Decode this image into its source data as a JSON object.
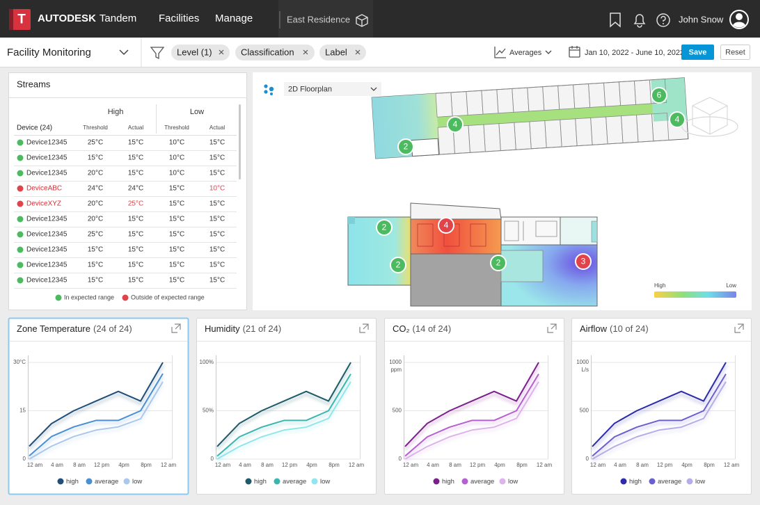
{
  "header": {
    "logo_letter": "T",
    "brand": "AUTODESK",
    "product": "Tandem",
    "nav": [
      "Facilities",
      "Manage"
    ],
    "facility": "East Residence",
    "user": "John Snow"
  },
  "toolbar": {
    "view": "Facility Monitoring",
    "filters": [
      "Level (1)",
      "Classification",
      "Label"
    ],
    "aggregate": "Averages",
    "date_range": "Jan 10, 2022 - June 10, 2022",
    "save": "Save",
    "reset": "Reset"
  },
  "streams": {
    "title": "Streams",
    "group_high": "High",
    "group_low": "Low",
    "device_header": "Device (24)",
    "threshold": "Threshold",
    "actual": "Actual",
    "rows": [
      {
        "device": "Device12345",
        "status": "expected",
        "high_threshold": "25°C",
        "high_actual": "15°C",
        "low_threshold": "10°C",
        "low_actual": "15°C"
      },
      {
        "device": "Device12345",
        "status": "expected",
        "high_threshold": "15°C",
        "high_actual": "15°C",
        "low_threshold": "10°C",
        "low_actual": "15°C"
      },
      {
        "device": "Device12345",
        "status": "expected",
        "high_threshold": "20°C",
        "high_actual": "15°C",
        "low_threshold": "10°C",
        "low_actual": "15°C"
      },
      {
        "device": "DeviceABC",
        "status": "outside",
        "high_threshold": "24°C",
        "high_actual": "24°C",
        "low_threshold": "15°C",
        "low_actual": "10°C",
        "alert": "low_actual"
      },
      {
        "device": "DeviceXYZ",
        "status": "outside",
        "high_threshold": "20°C",
        "high_actual": "25°C",
        "low_threshold": "15°C",
        "low_actual": "15°C",
        "alert": "high_actual"
      },
      {
        "device": "Device12345",
        "status": "expected",
        "high_threshold": "20°C",
        "high_actual": "15°C",
        "low_threshold": "15°C",
        "low_actual": "15°C"
      },
      {
        "device": "Device12345",
        "status": "expected",
        "high_threshold": "25°C",
        "high_actual": "15°C",
        "low_threshold": "15°C",
        "low_actual": "15°C"
      },
      {
        "device": "Device12345",
        "status": "expected",
        "high_threshold": "15°C",
        "high_actual": "15°C",
        "low_threshold": "15°C",
        "low_actual": "15°C"
      },
      {
        "device": "Device12345",
        "status": "expected",
        "high_threshold": "15°C",
        "high_actual": "15°C",
        "low_threshold": "15°C",
        "low_actual": "15°C"
      },
      {
        "device": "Device12345",
        "status": "expected",
        "high_threshold": "15°C",
        "high_actual": "15°C",
        "low_threshold": "15°C",
        "low_actual": "15°C"
      }
    ],
    "legend": {
      "expected": "In expected range",
      "outside": "Outside of expected range"
    }
  },
  "map": {
    "view": "2D Floorplan",
    "markers": [
      {
        "label": 2,
        "status": "ok"
      },
      {
        "label": 4,
        "status": "ok"
      },
      {
        "label": 6,
        "status": "ok"
      },
      {
        "label": 4,
        "status": "ok"
      },
      {
        "label": 2,
        "status": "ok"
      },
      {
        "label": 4,
        "status": "alert"
      },
      {
        "label": 2,
        "status": "ok"
      },
      {
        "label": 2,
        "status": "ok"
      },
      {
        "label": 3,
        "status": "alert"
      }
    ],
    "legend": {
      "high": "High",
      "low": "Low"
    }
  },
  "chart_data": [
    {
      "type": "line",
      "title": "Zone Temperature",
      "count": "(24 of 24)",
      "categories": [
        "12 am",
        "4 am",
        "8 am",
        "12 pm",
        "4pm",
        "8pm",
        "12 am"
      ],
      "ylim": [
        0,
        30
      ],
      "yticks": [
        0,
        15,
        {
          "value": 30,
          "label": "30°C"
        }
      ],
      "series": [
        {
          "name": "high",
          "color": "#1f4e79",
          "values": [
            4,
            11,
            15,
            18,
            21,
            18,
            30
          ]
        },
        {
          "name": "average",
          "color": "#4a8fd4",
          "values": [
            1,
            7,
            10,
            12,
            12,
            15,
            26.5
          ]
        },
        {
          "name": "low",
          "color": "#a9c8ec",
          "values": [
            0,
            4,
            7,
            9,
            10,
            12.5,
            24
          ]
        }
      ]
    },
    {
      "type": "line",
      "title": "Humidity",
      "count": "(21 of 24)",
      "categories": [
        "12 am",
        "4 am",
        "8 am",
        "12 pm",
        "4pm",
        "8pm",
        "12 am"
      ],
      "ylim": [
        0,
        100
      ],
      "yticks": [
        0,
        {
          "value": 50,
          "label": "50%"
        },
        {
          "value": 100,
          "label": "100%"
        }
      ],
      "series": [
        {
          "name": "high",
          "color": "#1e5a68",
          "values": [
            13,
            37,
            50,
            60,
            70,
            60,
            100
          ]
        },
        {
          "name": "average",
          "color": "#3bb5b0",
          "values": [
            3,
            23,
            33,
            40,
            40,
            50,
            88
          ]
        },
        {
          "name": "low",
          "color": "#8ee6ee",
          "values": [
            0,
            13,
            23,
            30,
            33,
            42,
            80
          ]
        }
      ]
    },
    {
      "type": "line",
      "title": "CO₂",
      "count": "(14 of 24)",
      "categories": [
        "12 am",
        "4 am",
        "8 am",
        "12 pm",
        "4pm",
        "8pm",
        "12 am"
      ],
      "ylim": [
        0,
        1000
      ],
      "yticks": [
        0,
        500,
        1000
      ],
      "y_unit": "ppm",
      "series": [
        {
          "name": "high",
          "color": "#7b1f8c",
          "values": [
            130,
            370,
            500,
            600,
            700,
            600,
            1000
          ]
        },
        {
          "name": "average",
          "color": "#b55fd0",
          "values": [
            30,
            230,
            330,
            400,
            400,
            500,
            880
          ]
        },
        {
          "name": "low",
          "color": "#dcb3ec",
          "values": [
            0,
            130,
            230,
            300,
            330,
            420,
            800
          ]
        }
      ]
    },
    {
      "type": "line",
      "title": "Airflow",
      "count": "(10 of 24)",
      "categories": [
        "12 am",
        "4 am",
        "8 am",
        "12 pm",
        "4pm",
        "8pm",
        "12 am"
      ],
      "ylim": [
        0,
        1000
      ],
      "yticks": [
        0,
        500,
        1000
      ],
      "y_unit": "L/s",
      "series": [
        {
          "name": "high",
          "color": "#2b2bab",
          "values": [
            130,
            370,
            500,
            600,
            700,
            600,
            1000
          ]
        },
        {
          "name": "average",
          "color": "#6a5fcf",
          "values": [
            30,
            230,
            330,
            400,
            400,
            500,
            880
          ]
        },
        {
          "name": "low",
          "color": "#b4aee8",
          "values": [
            0,
            130,
            230,
            300,
            330,
            420,
            800
          ]
        }
      ]
    }
  ]
}
